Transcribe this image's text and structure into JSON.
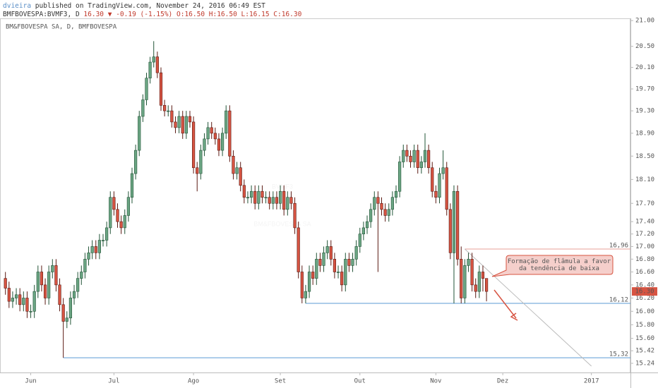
{
  "header": {
    "author": "dvieira",
    "published": "published on TradingView.com, November 24, 2016 06:49 EST",
    "symbol": "BMFBOVESPA:BVMF3, D",
    "last": "16.30",
    "change": "▼ -0.19 (-1.15%)",
    "ohlc": "O:16.50 H:16.50 L:16.15 C:16.30"
  },
  "chart_data": {
    "type": "candlestick",
    "title": "BM&FBOVESPA SA, D, BMFBOVESPA",
    "watermark": [
      "BVMF3",
      "BM&FBOVESPA SA"
    ],
    "log_scale": true,
    "up_color": "#6ba583",
    "down_color": "#d75442",
    "ylim": [
      15.14,
      21.1
    ],
    "yticks": [
      {
        "value": 15.24,
        "label": "15.24"
      },
      {
        "value": 15.42,
        "label": "15.42"
      },
      {
        "value": 15.6,
        "label": "15.60"
      },
      {
        "value": 15.8,
        "label": "15.80"
      },
      {
        "value": 16,
        "label": "16.00"
      },
      {
        "value": 16.2,
        "label": "16.20"
      },
      {
        "value": 16.4,
        "label": "16.40"
      },
      {
        "value": 16.6,
        "label": "16.60"
      },
      {
        "value": 16.8,
        "label": "16.80"
      },
      {
        "value": 17,
        "label": "17.00"
      },
      {
        "value": 17.2,
        "label": "17.20"
      },
      {
        "value": 17.4,
        "label": "17.40"
      },
      {
        "value": 17.7,
        "label": "17.70"
      },
      {
        "value": 18.1,
        "label": "18.10"
      },
      {
        "value": 18.5,
        "label": "18.50"
      },
      {
        "value": 18.9,
        "label": "18.90"
      },
      {
        "value": 19.3,
        "label": "19.30"
      },
      {
        "value": 19.7,
        "label": "19.70"
      },
      {
        "value": 20.1,
        "label": "20.10"
      },
      {
        "value": 20.5,
        "label": "20.50"
      },
      {
        "value": 21,
        "label": "21.00"
      }
    ],
    "xlim": [
      -1.5,
      172.8
    ],
    "xticks": [
      {
        "value": 7,
        "label": "Jun"
      },
      {
        "value": 30,
        "label": "Jul"
      },
      {
        "value": 52,
        "label": "Ago"
      },
      {
        "value": 76,
        "label": "Set"
      },
      {
        "value": 98,
        "label": "Out"
      },
      {
        "value": 119,
        "label": "Nov"
      },
      {
        "value": 137.5,
        "label": "Dez"
      },
      {
        "value": 162,
        "label": "2017"
      }
    ],
    "open": [
      16.5,
      16.35,
      16.15,
      16.2,
      16.25,
      16.1,
      16.2,
      16.0,
      16.0,
      16.3,
      16.6,
      16.4,
      16.2,
      16.6,
      16.7,
      16.4,
      16.1,
      15.85,
      15.9,
      16.2,
      16.3,
      16.5,
      16.6,
      16.8,
      16.9,
      17.0,
      16.9,
      17.1,
      17.1,
      17.3,
      17.8,
      17.6,
      17.4,
      17.3,
      17.5,
      17.8,
      18.2,
      18.6,
      19.2,
      19.5,
      19.9,
      20.2,
      20.3,
      20.0,
      19.4,
      19.3,
      19.3,
      19.1,
      19.0,
      19.2,
      18.9,
      19.2,
      19.1,
      18.3,
      18.2,
      18.6,
      18.8,
      19.0,
      18.9,
      18.8,
      18.6,
      18.9,
      19.3,
      18.5,
      18.2,
      18.3,
      18.0,
      17.8,
      17.8,
      17.9,
      17.7,
      17.9,
      17.8,
      17.8,
      17.7,
      17.8,
      17.7,
      17.9,
      17.6,
      17.8,
      17.7,
      17.3,
      16.6,
      16.2,
      16.3,
      16.6,
      16.5,
      16.8,
      16.7,
      16.9,
      17.0,
      16.8,
      16.6,
      16.6,
      16.4,
      16.8,
      16.7,
      16.8,
      17.0,
      17.2,
      17.3,
      17.4,
      17.6,
      17.8,
      17.7,
      17.6,
      17.5,
      17.6,
      17.8,
      17.9,
      18.4,
      18.6,
      18.5,
      18.4,
      18.6,
      18.3,
      18.4,
      18.6,
      18.3,
      17.9,
      17.8,
      18.2,
      18.3,
      17.6,
      16.9,
      17.9,
      16.8,
      16.2,
      16.7,
      16.8,
      16.4,
      16.3,
      16.6,
      16.5
    ],
    "high": [
      16.6,
      16.45,
      16.3,
      16.35,
      16.35,
      16.3,
      16.3,
      16.1,
      16.4,
      16.7,
      16.7,
      16.5,
      16.7,
      16.8,
      16.8,
      16.5,
      16.2,
      16.0,
      16.3,
      16.4,
      16.6,
      16.7,
      16.9,
      17.0,
      17.1,
      17.1,
      17.2,
      17.2,
      17.4,
      17.9,
      17.9,
      17.7,
      17.5,
      17.6,
      17.9,
      18.3,
      18.7,
      19.3,
      19.6,
      20.0,
      20.3,
      20.6,
      20.4,
      20.1,
      19.5,
      19.4,
      19.4,
      19.2,
      19.3,
      19.3,
      19.3,
      19.3,
      19.2,
      18.4,
      18.7,
      18.9,
      19.1,
      19.1,
      19.0,
      18.9,
      19.0,
      19.4,
      19.4,
      18.6,
      18.4,
      18.4,
      18.1,
      17.9,
      18.0,
      18.0,
      18.0,
      18.0,
      17.9,
      17.9,
      17.9,
      17.9,
      18.0,
      18.0,
      17.9,
      17.9,
      17.8,
      17.4,
      16.7,
      16.4,
      16.7,
      16.7,
      16.9,
      16.9,
      17.0,
      17.1,
      17.1,
      16.9,
      16.7,
      16.7,
      16.9,
      16.9,
      16.9,
      17.1,
      17.3,
      17.4,
      17.5,
      17.7,
      17.9,
      17.9,
      17.8,
      17.7,
      17.7,
      17.9,
      18.0,
      18.5,
      18.7,
      18.7,
      18.6,
      18.7,
      18.7,
      18.5,
      18.9,
      18.7,
      18.4,
      18.0,
      18.3,
      18.6,
      18.4,
      17.7,
      18.0,
      18.0,
      17.0,
      16.8,
      16.9,
      16.9,
      16.5,
      16.7,
      16.7,
      16.5
    ],
    "low": [
      16.25,
      16.05,
      16.05,
      16.1,
      16.0,
      16.0,
      15.9,
      15.9,
      15.9,
      16.2,
      16.3,
      16.1,
      16.1,
      16.5,
      16.3,
      16.0,
      15.32,
      15.75,
      15.8,
      16.1,
      16.2,
      16.4,
      16.5,
      16.7,
      16.8,
      16.8,
      16.8,
      17.0,
      17.0,
      17.2,
      17.5,
      17.3,
      17.2,
      17.2,
      17.4,
      17.7,
      18.1,
      18.5,
      19.1,
      19.4,
      19.8,
      20.1,
      19.9,
      19.3,
      19.2,
      19.2,
      19.0,
      18.9,
      18.9,
      18.8,
      18.8,
      19.0,
      18.2,
      17.9,
      18.1,
      18.5,
      18.7,
      18.8,
      18.7,
      18.5,
      18.5,
      18.8,
      18.4,
      18.1,
      18.1,
      17.9,
      17.7,
      17.7,
      17.7,
      17.6,
      17.6,
      17.7,
      17.7,
      17.6,
      17.6,
      17.6,
      17.6,
      17.5,
      17.5,
      17.6,
      17.2,
      16.5,
      16.12,
      16.12,
      16.2,
      16.4,
      16.4,
      16.6,
      16.6,
      16.8,
      16.7,
      16.5,
      16.5,
      16.3,
      16.3,
      16.6,
      16.6,
      16.7,
      16.9,
      17.1,
      17.2,
      17.3,
      17.5,
      16.6,
      17.5,
      17.4,
      17.4,
      17.5,
      17.7,
      17.8,
      18.3,
      18.4,
      18.3,
      18.3,
      18.2,
      18.2,
      18.3,
      18.2,
      17.8,
      17.7,
      17.7,
      18.1,
      17.5,
      16.8,
      16.12,
      16.7,
      16.12,
      16.12,
      16.6,
      16.3,
      16.2,
      16.2,
      16.3,
      16.15
    ],
    "close": [
      16.35,
      16.15,
      16.2,
      16.25,
      16.1,
      16.2,
      16.0,
      16.0,
      16.3,
      16.6,
      16.4,
      16.2,
      16.6,
      16.7,
      16.4,
      16.1,
      15.85,
      15.9,
      16.2,
      16.3,
      16.5,
      16.6,
      16.8,
      16.9,
      17.0,
      16.9,
      17.1,
      17.1,
      17.3,
      17.8,
      17.6,
      17.4,
      17.3,
      17.5,
      17.8,
      18.2,
      18.6,
      19.2,
      19.5,
      19.9,
      20.2,
      20.3,
      20.0,
      19.4,
      19.3,
      19.3,
      19.1,
      19.0,
      19.2,
      18.9,
      19.2,
      19.1,
      18.3,
      18.2,
      18.6,
      18.8,
      19.0,
      18.9,
      18.8,
      18.6,
      18.9,
      19.3,
      18.5,
      18.2,
      18.3,
      18.0,
      17.8,
      17.8,
      17.9,
      17.7,
      17.9,
      17.8,
      17.8,
      17.7,
      17.8,
      17.7,
      17.9,
      17.6,
      17.8,
      17.7,
      17.3,
      16.6,
      16.2,
      16.3,
      16.6,
      16.5,
      16.8,
      16.7,
      16.9,
      17.0,
      16.8,
      16.6,
      16.6,
      16.4,
      16.8,
      16.7,
      16.8,
      17.0,
      17.2,
      17.3,
      17.4,
      17.6,
      17.8,
      17.7,
      17.6,
      17.5,
      17.6,
      17.8,
      17.9,
      18.4,
      18.6,
      18.5,
      18.4,
      18.6,
      18.3,
      18.4,
      18.6,
      18.3,
      17.9,
      17.8,
      18.2,
      18.3,
      17.6,
      16.9,
      17.9,
      16.8,
      16.2,
      16.7,
      16.8,
      16.4,
      16.3,
      16.6,
      16.5,
      16.3
    ],
    "price_label": {
      "value": 16.3,
      "label": "16.30",
      "color": "#d75442"
    },
    "levels": [
      {
        "value": 16.96,
        "label": "16,96",
        "x": 127,
        "color": "#e8a09a"
      },
      {
        "value": 16.12,
        "label": "16,12",
        "x": 83,
        "color": "#5b9bd5"
      },
      {
        "value": 15.32,
        "label": "15,32",
        "x": 16,
        "color": "#5b9bd5"
      }
    ],
    "trendline": {
      "x": [
        127,
        162
      ],
      "y": [
        16.96,
        15.2
      ]
    },
    "annotation": "Formação de flâmula a favor\nda tendência de baixa"
  }
}
